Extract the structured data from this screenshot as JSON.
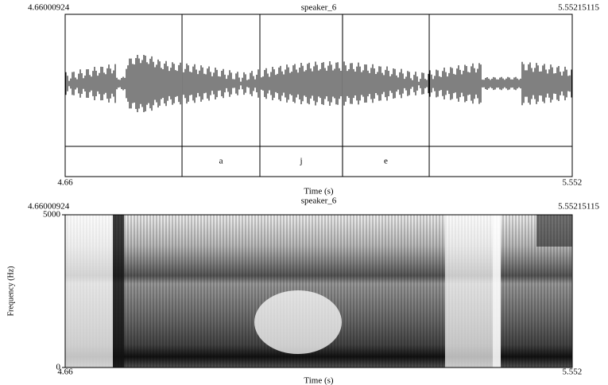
{
  "waveform": {
    "title": "speaker_6",
    "xlim": [
      4.66000924,
      5.55215115
    ],
    "xticks": [
      4.66,
      5.552
    ],
    "xlabel": "Time (s)",
    "intervals": [
      {
        "start": 4.8656,
        "end": 5.0026,
        "text": "a"
      },
      {
        "start": 5.0026,
        "end": 5.148,
        "text": "j"
      },
      {
        "start": 5.148,
        "end": 5.3005,
        "text": "e"
      }
    ]
  },
  "spectrogram": {
    "title": "speaker_6",
    "xlim": [
      4.66000924,
      5.55215115
    ],
    "xticks": [
      4.66,
      5.552
    ],
    "xlabel": "Time (s)",
    "ylim": [
      0,
      5000
    ],
    "yticks": [
      0,
      5000
    ],
    "ylabel": "Frequency (Hz)"
  }
}
